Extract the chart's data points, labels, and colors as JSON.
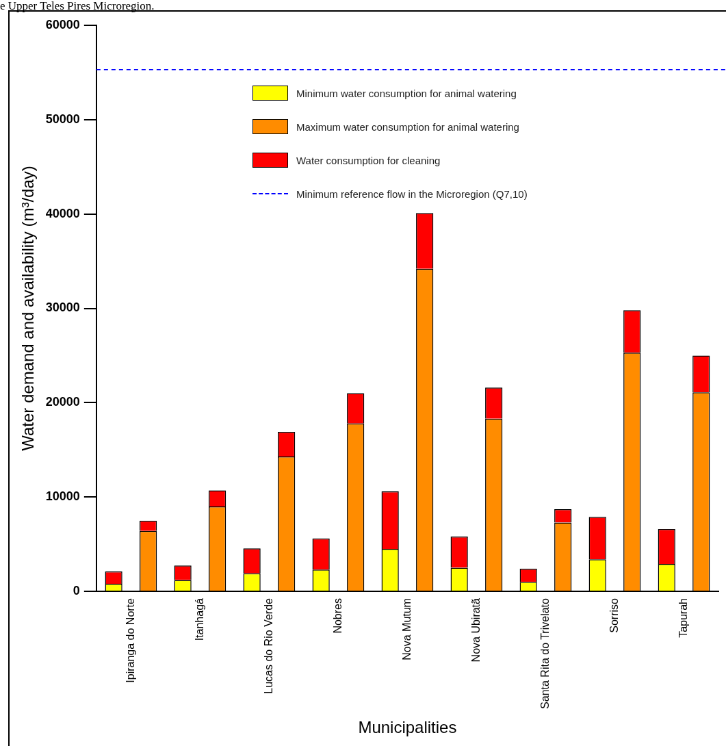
{
  "chart_data": {
    "type": "bar",
    "stacked": true,
    "categories": [
      "Ipiranga do Norte",
      null,
      "Itanhagá",
      null,
      "Lucas do Rio Verde",
      null,
      "Nobres",
      null,
      "Nova Mutum",
      null,
      "Nova Ubiratã",
      null,
      "Santa Rita do Trivelato",
      null,
      "Sorriso",
      null,
      "Tapurah",
      null
    ],
    "series": [
      {
        "name": "Minimum water consumption for animal watering",
        "color": "#ffff00",
        "values": [
          800,
          null,
          1200,
          null,
          1900,
          null,
          2300,
          null,
          4500,
          null,
          2500,
          null,
          1000,
          null,
          3400,
          null,
          2900,
          null
        ]
      },
      {
        "name": "Maximum water consumption for animal watering",
        "color": "#ff8c00",
        "values": [
          null,
          6400,
          null,
          9000,
          null,
          14300,
          null,
          17800,
          null,
          34200,
          null,
          18300,
          null,
          7300,
          null,
          25300,
          null,
          21100
        ]
      },
      {
        "name": "Water consumption for cleaning",
        "color": "#ff0000",
        "values": [
          1300,
          1100,
          1550,
          1700,
          2650,
          2600,
          3300,
          3200,
          6100,
          5900,
          3300,
          3300,
          1400,
          1400,
          4500,
          4500,
          3700,
          3900
        ]
      }
    ],
    "ylim": [
      0,
      60000
    ],
    "yticks": [
      0,
      10000,
      20000,
      30000,
      40000,
      50000,
      60000
    ],
    "xlabel": "Municipalities",
    "ylabel": "Water demand and availability (m³/day)",
    "ref_lines": [
      {
        "axis": "y",
        "value": 55300,
        "label": "Minimum reference flow in the Microregion (Q7,10)",
        "color": "#0000ff",
        "line_style": "dashed"
      }
    ],
    "legend": "top",
    "grid": false,
    "annotations": [
      "e Upper Teles Pires Microregion."
    ]
  }
}
